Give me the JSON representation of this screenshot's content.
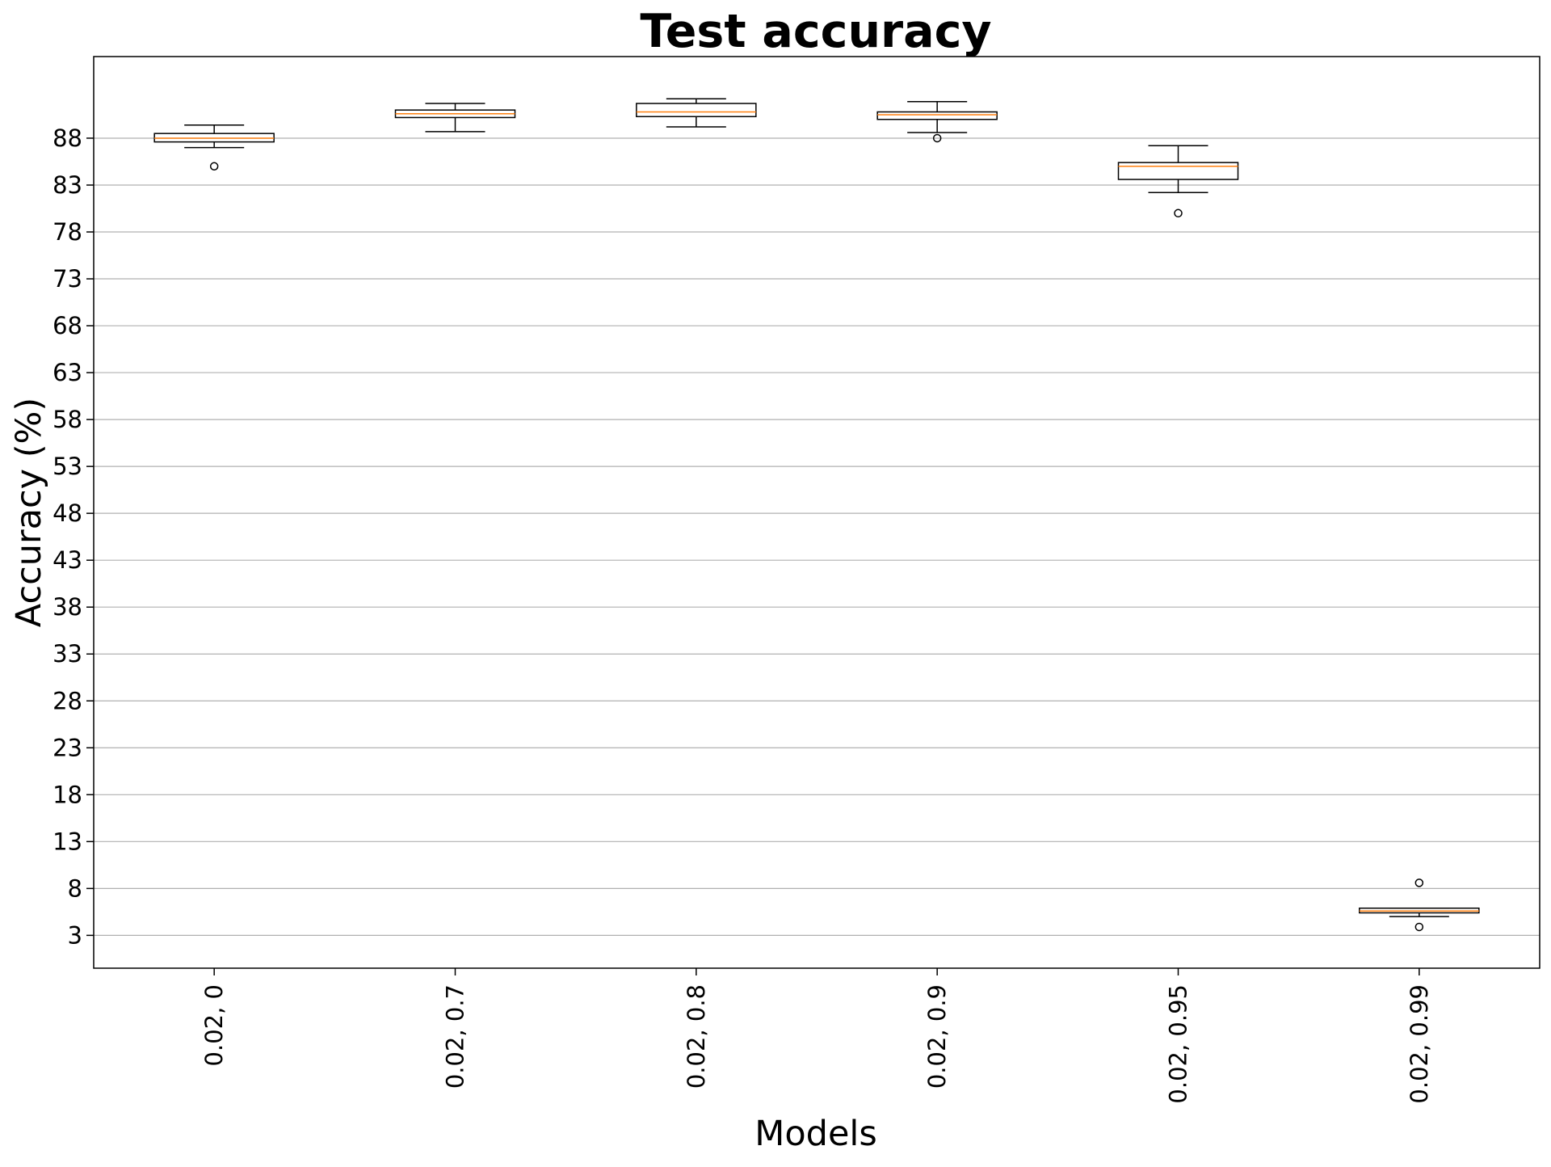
{
  "chart_data": {
    "type": "box",
    "title": "Test accuracy",
    "xlabel": "Models",
    "ylabel": "Accuracy (%)",
    "categories": [
      "0.02, 0",
      "0.02, 0.7",
      "0.02, 0.8",
      "0.02, 0.9",
      "0.02, 0.95",
      "0.02, 0.99"
    ],
    "yticks": [
      3,
      8,
      13,
      18,
      23,
      28,
      33,
      38,
      43,
      48,
      53,
      58,
      63,
      68,
      73,
      78,
      83,
      88
    ],
    "ylim": [
      -0.5,
      96.7
    ],
    "grid": "y",
    "boxes": [
      {
        "category": "0.02, 0",
        "whisker_low": 87.0,
        "q1": 87.6,
        "median": 88.0,
        "q3": 88.5,
        "whisker_high": 89.4,
        "outliers": [
          85.0
        ]
      },
      {
        "category": "0.02, 0.7",
        "whisker_low": 88.7,
        "q1": 90.2,
        "median": 90.6,
        "q3": 91.0,
        "whisker_high": 91.7,
        "outliers": []
      },
      {
        "category": "0.02, 0.8",
        "whisker_low": 89.2,
        "q1": 90.3,
        "median": 90.8,
        "q3": 91.7,
        "whisker_high": 92.2,
        "outliers": []
      },
      {
        "category": "0.02, 0.9",
        "whisker_low": 88.6,
        "q1": 90.0,
        "median": 90.5,
        "q3": 90.8,
        "whisker_high": 91.9,
        "outliers": [
          88.0
        ]
      },
      {
        "category": "0.02, 0.95",
        "whisker_low": 82.2,
        "q1": 83.6,
        "median": 85.0,
        "q3": 85.4,
        "whisker_high": 87.2,
        "outliers": [
          80.0
        ]
      },
      {
        "category": "0.02, 0.99",
        "whisker_low": 5.0,
        "q1": 5.4,
        "median": 5.6,
        "q3": 5.9,
        "whisker_high": 5.9,
        "outliers": [
          8.6,
          3.9
        ]
      }
    ],
    "colors": {
      "box": "#000000",
      "median": "#ff7f0e",
      "grid": "#b0b0b0",
      "frame": "#000000"
    }
  }
}
